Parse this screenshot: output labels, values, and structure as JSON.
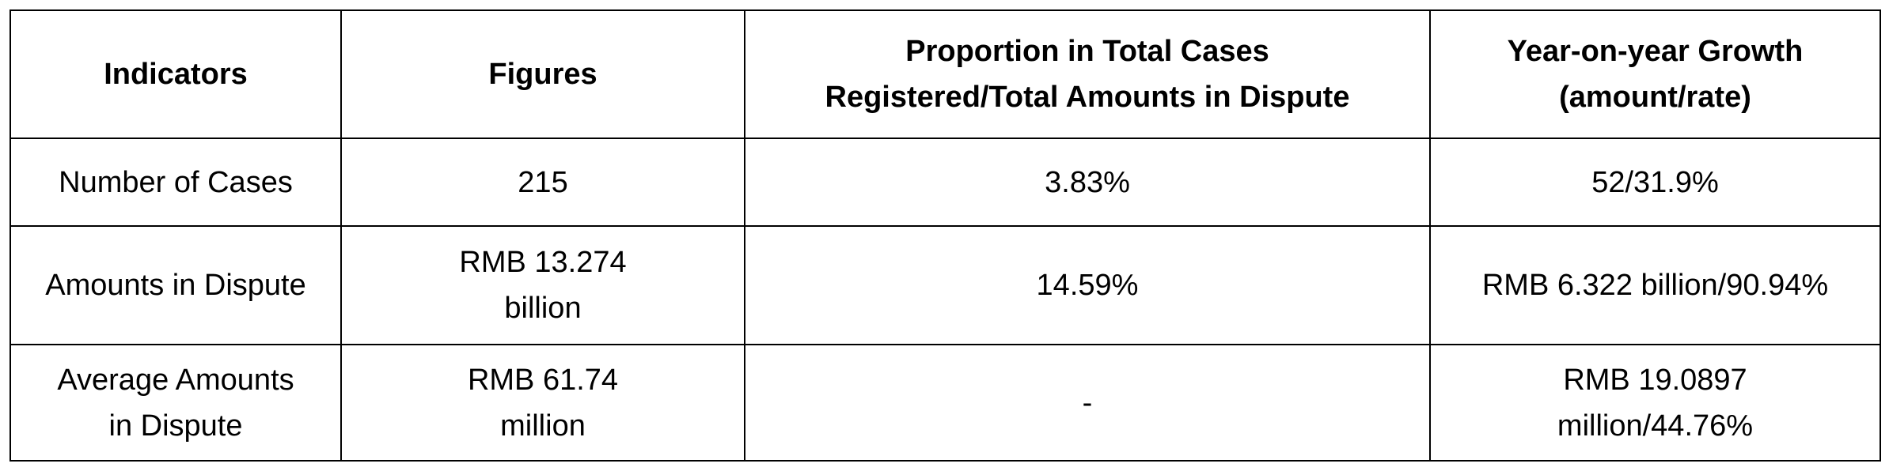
{
  "table": {
    "header": [
      [
        "Indicators"
      ],
      [
        "Figures"
      ],
      [
        "Proportion in Total Cases",
        "Registered/Total Amounts in Dispute"
      ],
      [
        "Year-on-year Growth",
        "(amount/rate)"
      ]
    ],
    "rows": [
      [
        [
          "Number of Cases"
        ],
        [
          "215"
        ],
        [
          "3.83%"
        ],
        [
          "52/31.9%"
        ]
      ],
      [
        [
          "Amounts in Dispute"
        ],
        [
          "RMB 13.274",
          "billion"
        ],
        [
          "14.59%"
        ],
        [
          "RMB 6.322 billion/90.94%"
        ]
      ],
      [
        [
          "Average Amounts",
          "in Dispute"
        ],
        [
          "RMB 61.74",
          "million"
        ],
        [
          "-"
        ],
        [
          "RMB 19.0897",
          "million/44.76%"
        ]
      ]
    ]
  }
}
